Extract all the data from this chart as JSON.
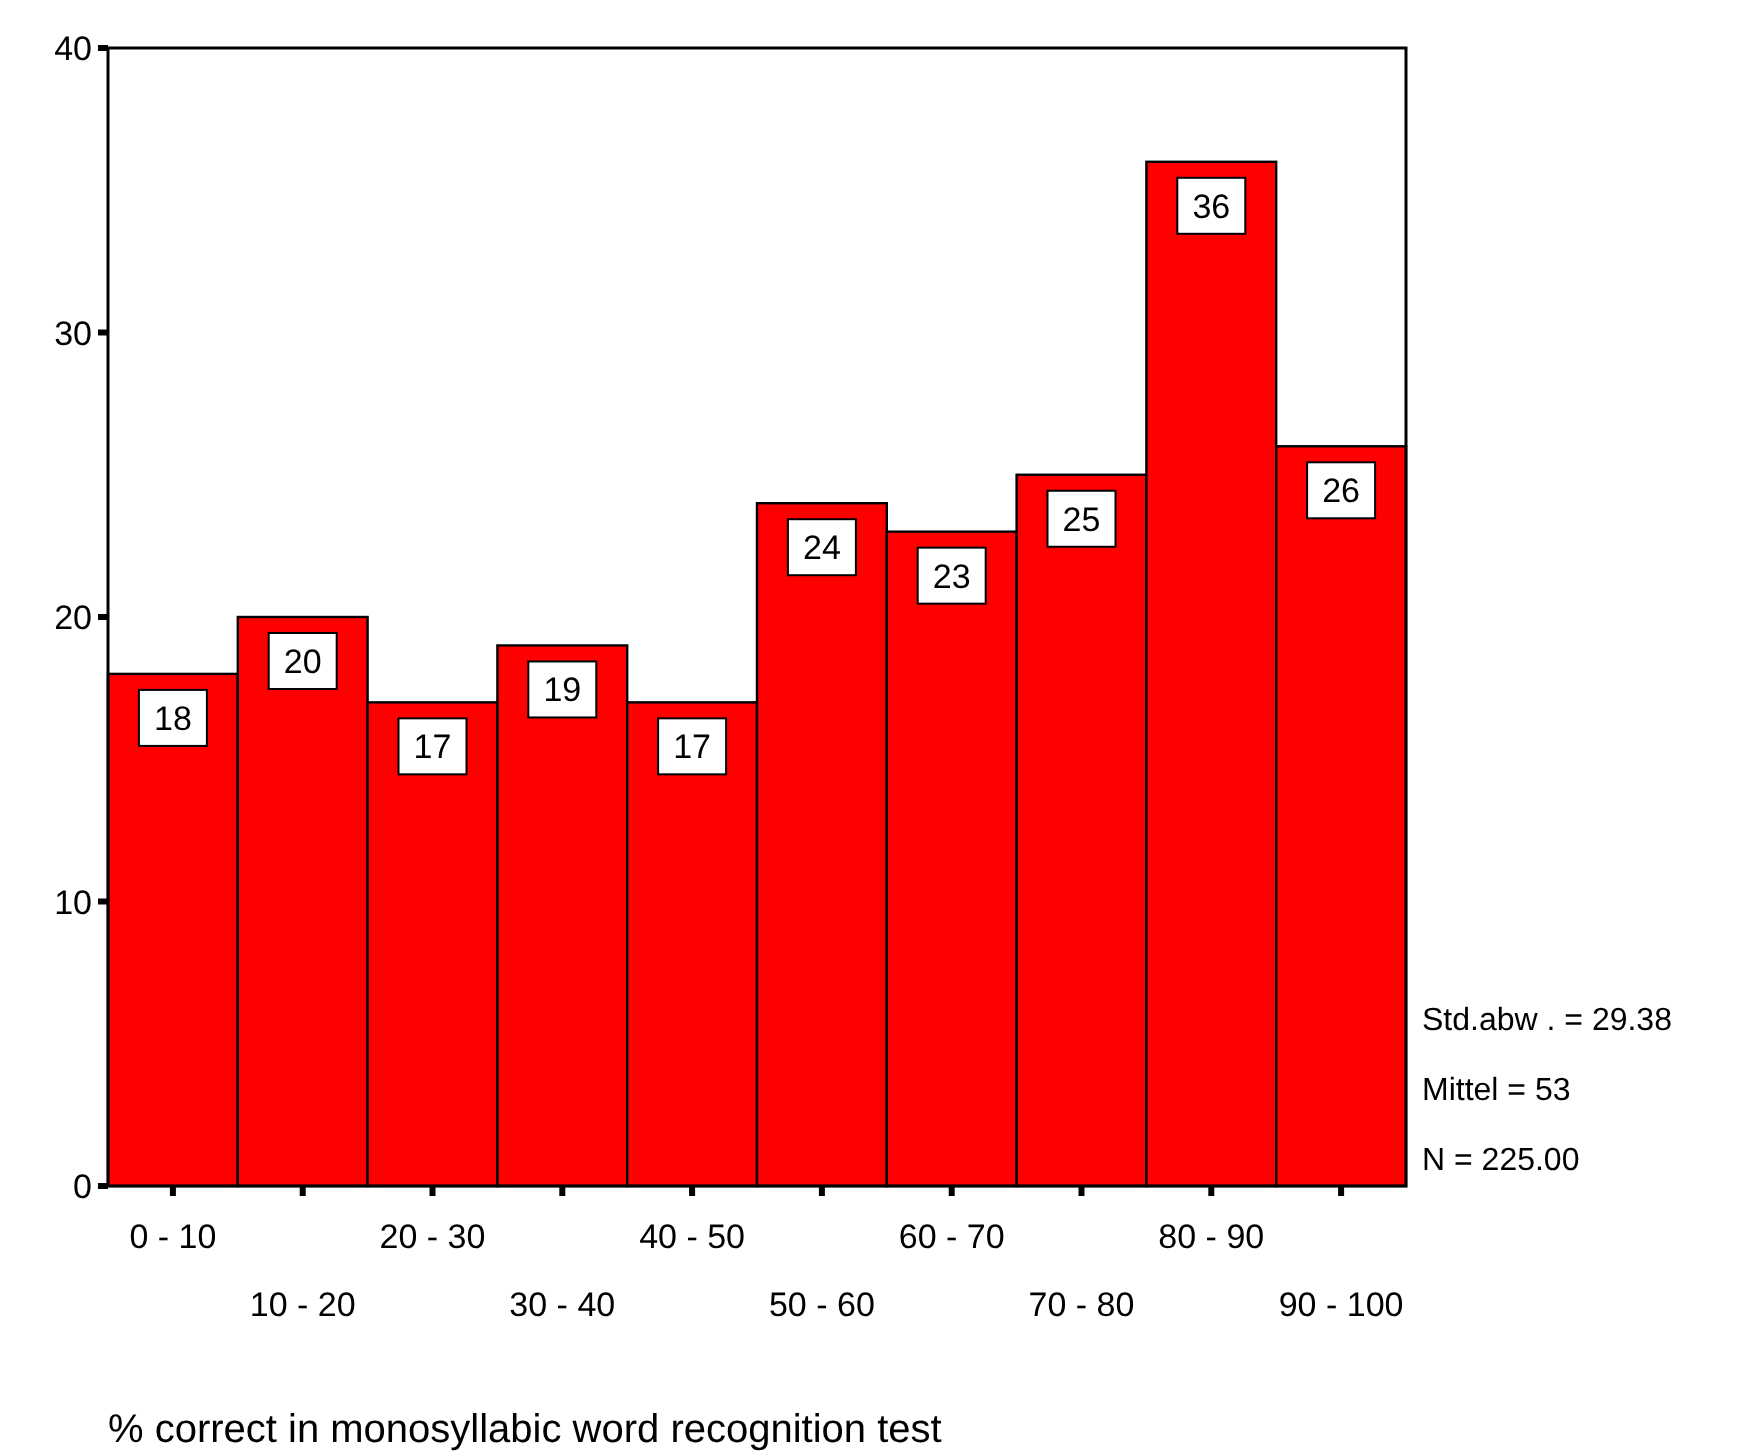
{
  "chart_data": {
    "type": "bar",
    "xlabel": "% correct in monosyllabic word recognition test",
    "categories": [
      "0 - 10",
      "10 - 20",
      "20 - 30",
      "30 - 40",
      "40 - 50",
      "50 - 60",
      "60 - 70",
      "70 - 80",
      "80 - 90",
      "90 - 100"
    ],
    "values": [
      18,
      20,
      17,
      19,
      17,
      24,
      23,
      25,
      36,
      26
    ],
    "color": "#ff0000",
    "ylim": [
      0,
      40
    ],
    "yticks": [
      0,
      10,
      20,
      30,
      40
    ],
    "grid": false,
    "data_labels": true,
    "annotations": [
      "Std.abw . = 29.38",
      "Mittel = 53",
      "N = 225.00"
    ]
  }
}
